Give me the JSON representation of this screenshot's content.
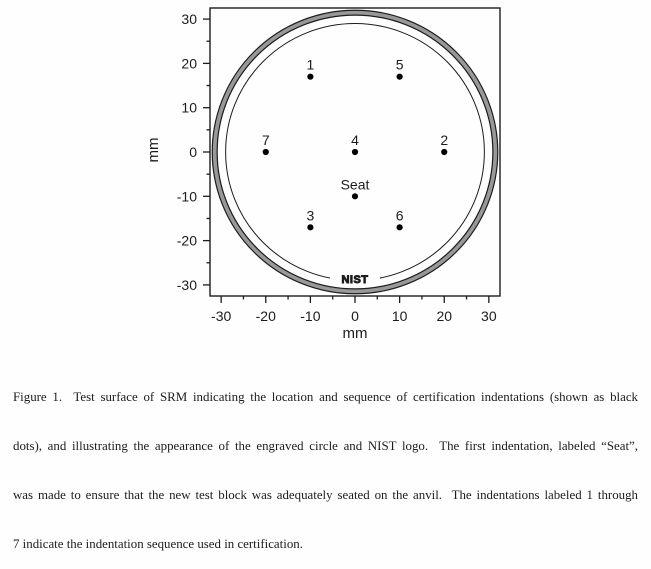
{
  "figure": {
    "caption_lines": [
      "Figure 1.  Test surface of SRM indicating the location and sequence of certification indentations (shown as black",
      "dots), and illustrating the appearance of the engraved circle and NIST logo.  The first indentation, labeled “Seat”,",
      "was made to ensure that the new test block was adequately seated on the anvil.  The indentations labeled 1 through",
      "7 indicate the indentation sequence used in certification."
    ]
  },
  "chart_data": {
    "type": "scatter",
    "title": "",
    "xlabel": "mm",
    "ylabel": "mm",
    "xlim": [
      -32.5,
      32.5
    ],
    "ylim": [
      -32.5,
      32.5
    ],
    "x_major_ticks": [
      -30,
      -20,
      -10,
      0,
      10,
      20,
      30
    ],
    "y_major_ticks": [
      -30,
      -20,
      -10,
      0,
      10,
      20,
      30
    ],
    "minor_tick_interval": 5,
    "grid": false,
    "legend": "none",
    "ink_color": "#1c1c1c",
    "point_color": "#000000",
    "point_radius_px": 3.1,
    "points": [
      {
        "label": "Seat",
        "x": 0,
        "y": -10
      },
      {
        "label": "1",
        "x": -10,
        "y": 17
      },
      {
        "label": "2",
        "x": 20,
        "y": 0
      },
      {
        "label": "3",
        "x": -10,
        "y": -17
      },
      {
        "label": "4",
        "x": 0,
        "y": 0
      },
      {
        "label": "5",
        "x": 10,
        "y": 17
      },
      {
        "label": "6",
        "x": 10,
        "y": -17
      },
      {
        "label": "7",
        "x": -20,
        "y": 0
      }
    ],
    "rings": {
      "outer_ring": {
        "r_outer": 32,
        "r_inner": 30.9,
        "fill": "#989898"
      },
      "engraved_circle": {
        "r": 29
      }
    },
    "logo": {
      "text": "NIST",
      "x": 0,
      "y": -28.6
    }
  }
}
